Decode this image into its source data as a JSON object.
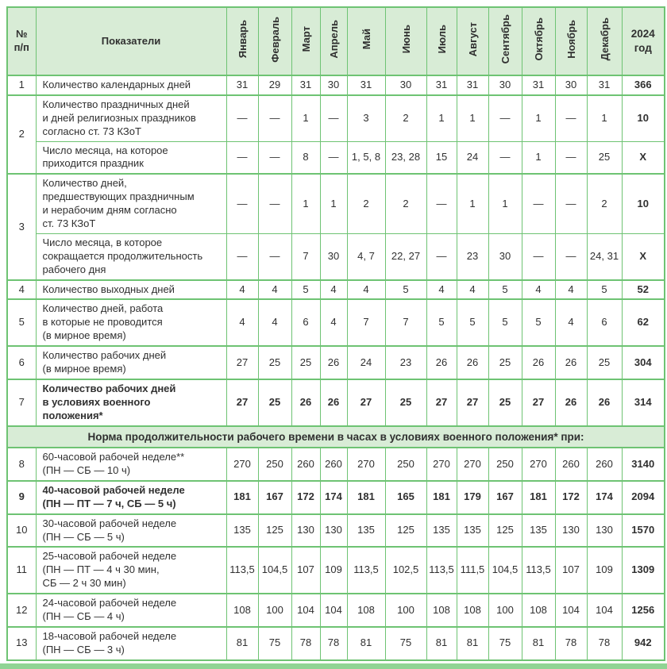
{
  "header": {
    "num": "№\nп/п",
    "indicators": "Показатели",
    "months": [
      "Январь",
      "Февраль",
      "Март",
      "Апрель",
      "Май",
      "Июнь",
      "Июль",
      "Август",
      "Сентябрь",
      "Октябрь",
      "Ноябрь",
      "Декабрь"
    ],
    "year": "2024\nгод"
  },
  "rows": [
    {
      "num": "1",
      "rowspan": 1,
      "label": "Количество календарных дней",
      "values": [
        "31",
        "29",
        "31",
        "30",
        "31",
        "30",
        "31",
        "31",
        "30",
        "31",
        "30",
        "31"
      ],
      "total": "366"
    },
    {
      "num": "2",
      "rowspan": 2,
      "label": "Количество праздничных дней\nи дней религиозных праздников\nсогласно ст. 73 КЗоТ",
      "values": [
        "—",
        "—",
        "1",
        "—",
        "3",
        "2",
        "1",
        "1",
        "—",
        "1",
        "—",
        "1"
      ],
      "total": "10"
    },
    {
      "label": "Число месяца, на которое\nприходится праздник",
      "values": [
        "—",
        "—",
        "8",
        "—",
        "1, 5, 8",
        "23, 28",
        "15",
        "24",
        "—",
        "1",
        "—",
        "25"
      ],
      "total": "X"
    },
    {
      "num": "3",
      "rowspan": 2,
      "label": "Количество дней,\nпредшествующих праздничным\nи нерабочим дням согласно\nст. 73 КЗоТ",
      "values": [
        "—",
        "—",
        "1",
        "1",
        "2",
        "2",
        "—",
        "1",
        "1",
        "—",
        "—",
        "2"
      ],
      "total": "10"
    },
    {
      "label": "Число месяца, в которое\nсокращается продолжительность\nрабочего дня",
      "values": [
        "—",
        "—",
        "7",
        "30",
        "4, 7",
        "22, 27",
        "—",
        "23",
        "30",
        "—",
        "—",
        "24, 31"
      ],
      "total": "X"
    },
    {
      "num": "4",
      "rowspan": 1,
      "label": "Количество выходных дней",
      "values": [
        "4",
        "4",
        "5",
        "4",
        "4",
        "5",
        "4",
        "4",
        "5",
        "4",
        "4",
        "5"
      ],
      "total": "52"
    },
    {
      "num": "5",
      "rowspan": 1,
      "label": "Количество дней, работа\nв которые не проводится\n(в мирное время)",
      "values": [
        "4",
        "4",
        "6",
        "4",
        "7",
        "7",
        "5",
        "5",
        "5",
        "5",
        "4",
        "6"
      ],
      "total": "62"
    },
    {
      "num": "6",
      "rowspan": 1,
      "label": "Количество рабочих дней\n(в мирное время)",
      "values": [
        "27",
        "25",
        "25",
        "26",
        "24",
        "23",
        "26",
        "26",
        "25",
        "26",
        "26",
        "25"
      ],
      "total": "304"
    },
    {
      "num": "7",
      "rowspan": 1,
      "bold": true,
      "label": "Количество рабочих дней\nв условиях военного\nположения*",
      "values": [
        "27",
        "25",
        "26",
        "26",
        "27",
        "25",
        "27",
        "27",
        "25",
        "27",
        "26",
        "26"
      ],
      "total": "314"
    },
    {
      "type": "section",
      "label": "Норма продолжительности рабочего времени в часах в условиях военного положения* при:"
    },
    {
      "num": "8",
      "rowspan": 1,
      "label": "60-часовой рабочей неделе**\n(ПН — СБ — 10 ч)",
      "values": [
        "270",
        "250",
        "260",
        "260",
        "270",
        "250",
        "270",
        "270",
        "250",
        "270",
        "260",
        "260"
      ],
      "total": "3140"
    },
    {
      "num": "9",
      "rowspan": 1,
      "bold": true,
      "num_bold": true,
      "label": "40-часовой рабочей неделе\n(ПН — ПТ — 7 ч, СБ — 5 ч)",
      "values": [
        "181",
        "167",
        "172",
        "174",
        "181",
        "165",
        "181",
        "179",
        "167",
        "181",
        "172",
        "174"
      ],
      "total": "2094"
    },
    {
      "num": "10",
      "rowspan": 1,
      "label": "30-часовой рабочей неделе\n(ПН — СБ — 5 ч)",
      "values": [
        "135",
        "125",
        "130",
        "130",
        "135",
        "125",
        "135",
        "135",
        "125",
        "135",
        "130",
        "130"
      ],
      "total": "1570"
    },
    {
      "num": "11",
      "rowspan": 1,
      "label": "25-часовой рабочей неделе\n(ПН — ПТ — 4 ч 30 мин,\nСБ — 2 ч 30 мин)",
      "values": [
        "113,5",
        "104,5",
        "107",
        "109",
        "113,5",
        "102,5",
        "113,5",
        "111,5",
        "104,5",
        "113,5",
        "107",
        "109"
      ],
      "total": "1309"
    },
    {
      "num": "12",
      "rowspan": 1,
      "label": "24-часовой рабочей неделе\n(ПН — СБ — 4 ч)",
      "values": [
        "108",
        "100",
        "104",
        "104",
        "108",
        "100",
        "108",
        "108",
        "100",
        "108",
        "104",
        "104"
      ],
      "total": "1256"
    },
    {
      "num": "13",
      "rowspan": 1,
      "label": "18-часовой рабочей неделе\n(ПН — СБ — 3 ч)",
      "values": [
        "81",
        "75",
        "78",
        "78",
        "81",
        "75",
        "81",
        "81",
        "75",
        "81",
        "78",
        "78"
      ],
      "total": "942"
    }
  ],
  "colors": {
    "border_green": "#6ec373",
    "header_background": "#d8ecd6",
    "accent_bar": "#90d494",
    "text": "#303030"
  }
}
